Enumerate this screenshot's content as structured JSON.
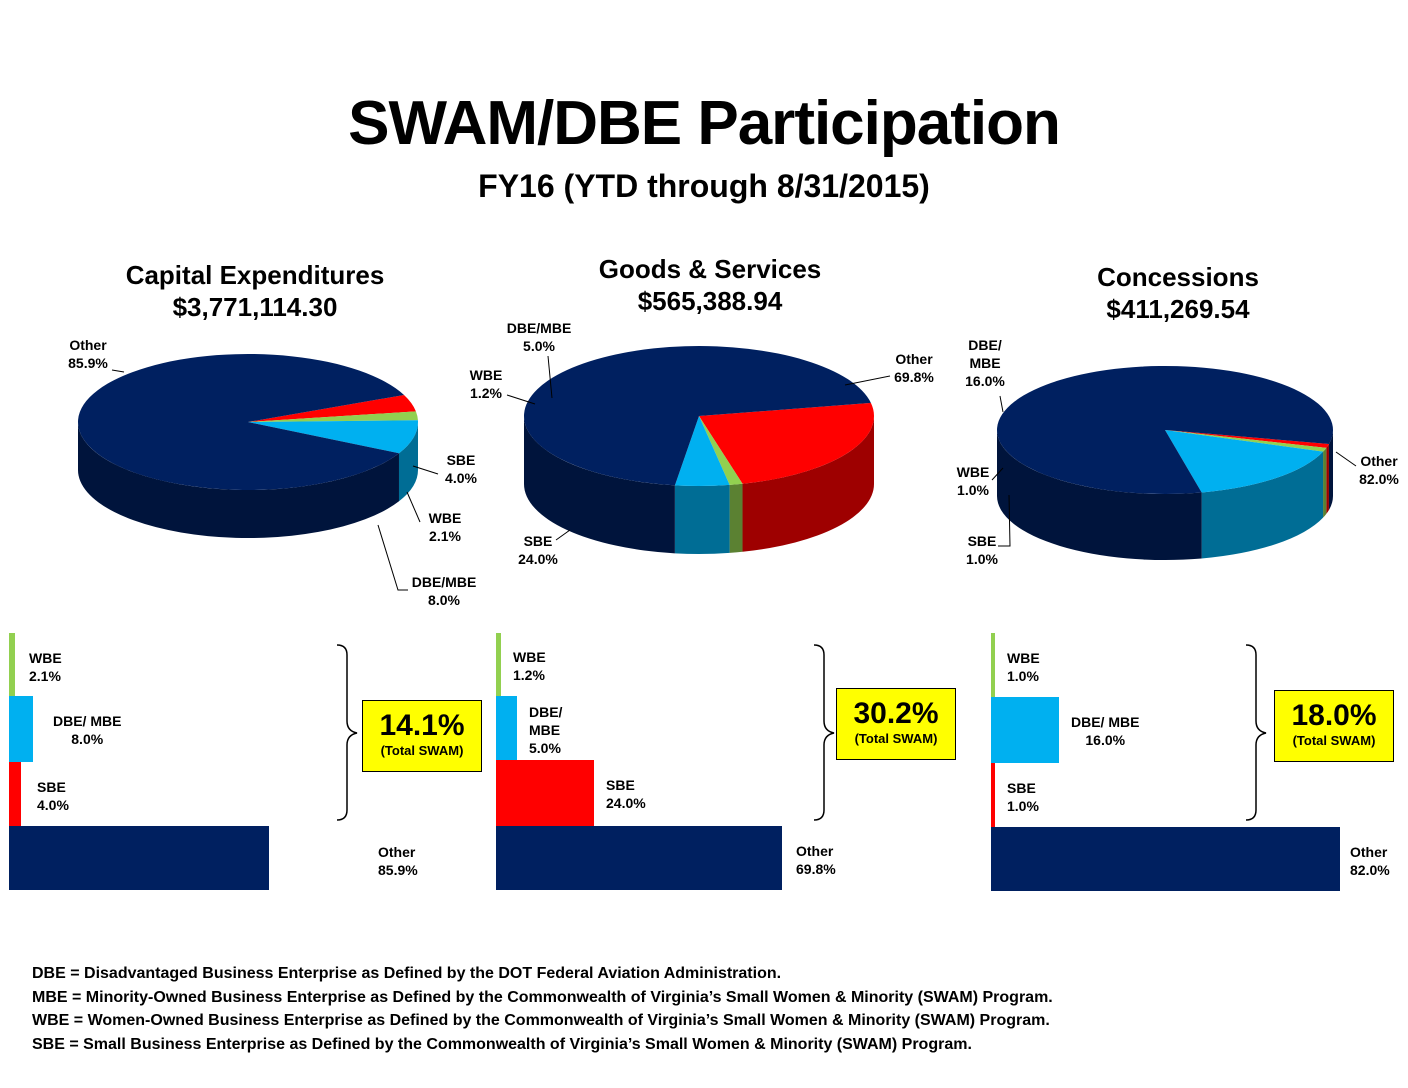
{
  "header": {
    "title": "SWAM/DBE Participation",
    "subtitle": "FY16 (YTD through 8/31/2015)"
  },
  "colors": {
    "Other": "#002060",
    "DBE/MBE": "#00b0f0",
    "WBE": "#92d050",
    "SBE": "#ff0000",
    "swam_box": "#ffff00"
  },
  "chart_data": [
    {
      "type": "pie",
      "title": "Capital Expenditures",
      "subtitle": "$3,771,114.30",
      "slices": [
        {
          "key": "SBE",
          "name": "SBE",
          "value": 4.0,
          "label": "4.0%"
        },
        {
          "key": "WBE",
          "name": "WBE",
          "value": 2.1,
          "label": "2.1%"
        },
        {
          "key": "DBE/MBE",
          "name": "DBE/MBE",
          "value": 8.0,
          "label": "8.0%"
        },
        {
          "key": "Other",
          "name": "Other",
          "value": 85.9,
          "label": "85.9%"
        }
      ],
      "bars": [
        {
          "key": "WBE",
          "name": "WBE",
          "value": 2.1,
          "label": "2.1%"
        },
        {
          "key": "DBE/MBE",
          "name": "DBE/ MBE",
          "value": 8.0,
          "label": "8.0%"
        },
        {
          "key": "SBE",
          "name": "SBE",
          "value": 4.0,
          "label": "4.0%"
        },
        {
          "key": "Other",
          "name": "Other",
          "value": 85.9,
          "label": "85.9%"
        }
      ],
      "total_swam": "14.1%",
      "total_swam_label": "(Total SWAM)"
    },
    {
      "type": "pie",
      "title": "Goods & Services",
      "subtitle": "$565,388.94",
      "slices": [
        {
          "key": "SBE",
          "name": "SBE",
          "value": 24.0,
          "label": "24.0%"
        },
        {
          "key": "WBE",
          "name": "WBE",
          "value": 1.2,
          "label": "1.2%"
        },
        {
          "key": "DBE/MBE",
          "name": "DBE/MBE",
          "value": 5.0,
          "label": "5.0%"
        },
        {
          "key": "Other",
          "name": "Other",
          "value": 69.8,
          "label": "69.8%"
        }
      ],
      "bars": [
        {
          "key": "WBE",
          "name": "WBE",
          "value": 1.2,
          "label": "1.2%"
        },
        {
          "key": "DBE/MBE",
          "name": "DBE/ MBE",
          "value": 5.0,
          "label": "5.0%"
        },
        {
          "key": "SBE",
          "name": "SBE",
          "value": 24.0,
          "label": "24.0%"
        },
        {
          "key": "Other",
          "name": "Other",
          "value": 69.8,
          "label": "69.8%"
        }
      ],
      "total_swam": "30.2%",
      "total_swam_label": "(Total SWAM)"
    },
    {
      "type": "pie",
      "title": "Concessions",
      "subtitle": "$411,269.54",
      "slices": [
        {
          "key": "SBE",
          "name": "SBE",
          "value": 1.0,
          "label": "1.0%"
        },
        {
          "key": "WBE",
          "name": "WBE",
          "value": 1.0,
          "label": "1.0%"
        },
        {
          "key": "DBE/MBE",
          "name": "DBE/ MBE",
          "value": 16.0,
          "label": "16.0%"
        },
        {
          "key": "Other",
          "name": "Other",
          "value": 82.0,
          "label": "82.0%"
        }
      ],
      "bars": [
        {
          "key": "WBE",
          "name": "WBE",
          "value": 1.0,
          "label": "1.0%"
        },
        {
          "key": "DBE/MBE",
          "name": "DBE/ MBE",
          "value": 16.0,
          "label": "16.0%"
        },
        {
          "key": "SBE",
          "name": "SBE",
          "value": 1.0,
          "label": "1.0%"
        },
        {
          "key": "Other",
          "name": "Other",
          "value": 82.0,
          "label": "82.0%"
        }
      ],
      "total_swam": "18.0%",
      "total_swam_label": "(Total SWAM)"
    }
  ],
  "definitions": [
    "DBE = Disadvantaged Business Enterprise as Defined by the DOT Federal Aviation Administration.",
    "MBE = Minority-Owned Business Enterprise as Defined by the Commonwealth of Virginia’s Small Women & Minority (SWAM) Program.",
    "WBE = Women-Owned Business Enterprise as Defined by the Commonwealth of Virginia’s Small Women & Minority (SWAM) Program.",
    "SBE = Small Business Enterprise as Defined by the Commonwealth of Virginia’s Small Women & Minority (SWAM) Program."
  ]
}
